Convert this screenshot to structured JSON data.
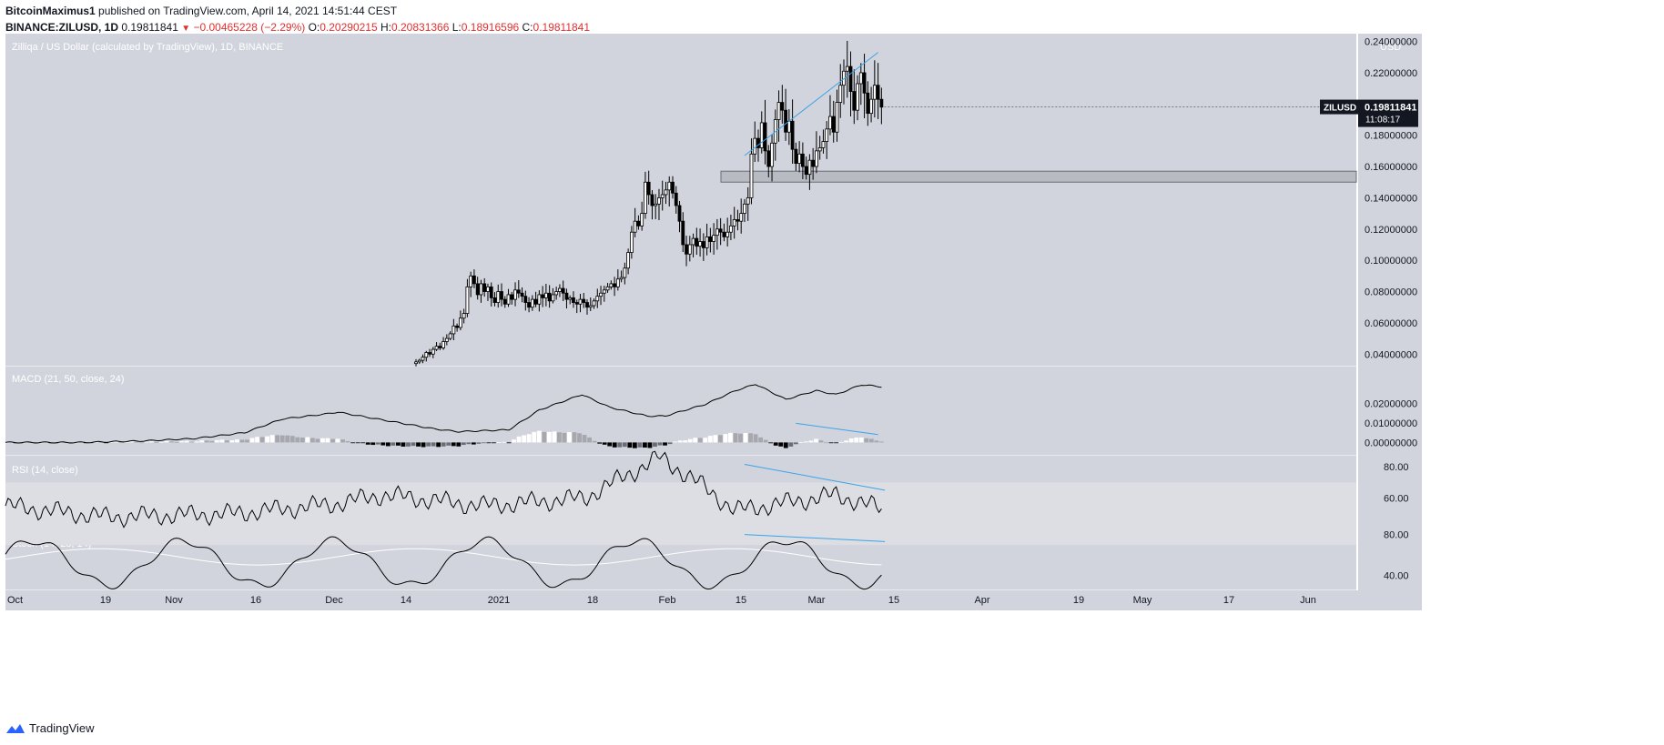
{
  "header": {
    "author": "BitcoinMaximus1",
    "published_text": "published on TradingView.com, April 14, 2021 14:51:44 CEST",
    "symbol": "BINANCE:ZILUSD, 1D",
    "last": "0.19811841",
    "change": "−0.00465228 (−2.29%)",
    "o_label": "O:",
    "o": "0.20290215",
    "h_label": "H:",
    "h": "0.20831366",
    "l_label": "L:",
    "l": "0.18916596",
    "c_label": "C:",
    "c": "0.19811841"
  },
  "colors": {
    "pane_bg": "#d1d4dc",
    "rsi_band": "#dcdee4",
    "trendline": "#3ba3e7",
    "candle_up": "#ffffff",
    "candle_down": "#000000",
    "price_tag_bg": "#131722",
    "macd_hist_light_up": "#ffffff",
    "macd_hist_light_down": "#a6a8ad",
    "macd_hist_dark_down": "#000000",
    "macd_hist_dark_up": "#6a6d75"
  },
  "footer": {
    "brand": "TradingView",
    "logo_icon": "tradingview-logo-icon"
  },
  "chart_data": [
    {
      "type": "candlestick",
      "title": "Zilliqa / US Dollar (calculated by TradingView), 1D, BINANCE",
      "currency": "USD",
      "symbol_tag": "ZILUSD",
      "last_price": "0.19811841",
      "countdown": "11:08:17",
      "ylim": [
        0.032,
        0.245
      ],
      "y_ticks": [
        "0.04000000",
        "0.06000000",
        "0.08000000",
        "0.10000000",
        "0.12000000",
        "0.14000000",
        "0.16000000",
        "0.18000000",
        "0.20000000",
        "0.22000000",
        "0.24000000"
      ],
      "x_ticks": [
        "Oct",
        "19",
        "Nov",
        "16",
        "Dec",
        "14",
        "2021",
        "18",
        "Feb",
        "15",
        "Mar",
        "15",
        "Apr",
        "19",
        "May",
        "17",
        "Jun"
      ],
      "closes": [
        0.035,
        0.036,
        0.038,
        0.041,
        0.04,
        0.043,
        0.045,
        0.044,
        0.048,
        0.05,
        0.053,
        0.058,
        0.057,
        0.063,
        0.066,
        0.083,
        0.09,
        0.085,
        0.078,
        0.085,
        0.08,
        0.083,
        0.076,
        0.073,
        0.08,
        0.075,
        0.072,
        0.078,
        0.075,
        0.081,
        0.079,
        0.077,
        0.073,
        0.07,
        0.075,
        0.072,
        0.078,
        0.076,
        0.079,
        0.074,
        0.078,
        0.08,
        0.082,
        0.079,
        0.075,
        0.076,
        0.073,
        0.072,
        0.075,
        0.073,
        0.07,
        0.071,
        0.074,
        0.077,
        0.079,
        0.081,
        0.083,
        0.085,
        0.083,
        0.088,
        0.089,
        0.095,
        0.105,
        0.118,
        0.125,
        0.122,
        0.13,
        0.15,
        0.142,
        0.135,
        0.136,
        0.14,
        0.142,
        0.145,
        0.15,
        0.143,
        0.135,
        0.125,
        0.11,
        0.104,
        0.11,
        0.114,
        0.109,
        0.112,
        0.108,
        0.115,
        0.112,
        0.116,
        0.12,
        0.118,
        0.115,
        0.118,
        0.122,
        0.126,
        0.125,
        0.13,
        0.136,
        0.14,
        0.168,
        0.178,
        0.172,
        0.188,
        0.17,
        0.16,
        0.175,
        0.19,
        0.201,
        0.196,
        0.182,
        0.189,
        0.171,
        0.162,
        0.168,
        0.16,
        0.155,
        0.164,
        0.16,
        0.17,
        0.172,
        0.176,
        0.184,
        0.192,
        0.182,
        0.201,
        0.212,
        0.221,
        0.224,
        0.208,
        0.196,
        0.213,
        0.22,
        0.207,
        0.194,
        0.203,
        0.212,
        0.203,
        0.198
      ],
      "trendlines": [
        {
          "from": [
            "Feb 12",
            0.167
          ],
          "to": [
            "Apr 8",
            0.233
          ]
        }
      ],
      "support_zone": [
        0.15,
        0.157
      ]
    },
    {
      "type": "line+histogram",
      "title": "MACD (21, 50, close, 24)",
      "ylim": [
        -0.004,
        0.036
      ],
      "y_ticks": [
        "0.00000000",
        "0.01000000",
        "0.02000000"
      ],
      "macd_keys": {
        "0": 0.0,
        "30": 0.0,
        "55": 0.0008,
        "75": 0.002,
        "95": 0.005,
        "110": 0.012,
        "127": 0.0145,
        "132": 0.0155,
        "150": 0.0115,
        "170": 0.007,
        "180": 0.0055,
        "200": 0.0065,
        "212": 0.0165,
        "229": 0.0245,
        "240": 0.018,
        "255": 0.0135,
        "262": 0.0135,
        "278": 0.0195,
        "290": 0.0265,
        "298": 0.0298,
        "310": 0.022,
        "322": 0.0265,
        "330": 0.0245,
        "340": 0.0295,
        "348": 0.0285
      },
      "trendlines": [
        {
          "from": [
            "Feb 19",
            0.0098
          ],
          "to": [
            "Apr 8",
            0.004
          ]
        }
      ]
    },
    {
      "type": "line",
      "title": "RSI (14, close)",
      "ylim": [
        40,
        87
      ],
      "y_ticks": [
        "60.00",
        "80.00"
      ],
      "band": [
        30,
        70
      ],
      "trendlines": [
        {
          "from": [
            "Feb 12",
            81.5
          ],
          "to": [
            "Apr 10",
            65.0
          ]
        }
      ]
    },
    {
      "type": "line",
      "title": "Stoch (14, 28, 14)",
      "ylim": [
        25,
        85
      ],
      "y_ticks": [
        "40.00",
        "80.00"
      ],
      "trendlines": [
        {
          "from": [
            "Feb 12",
            80.0
          ],
          "to": [
            "Apr 10",
            73.0
          ]
        }
      ]
    }
  ]
}
